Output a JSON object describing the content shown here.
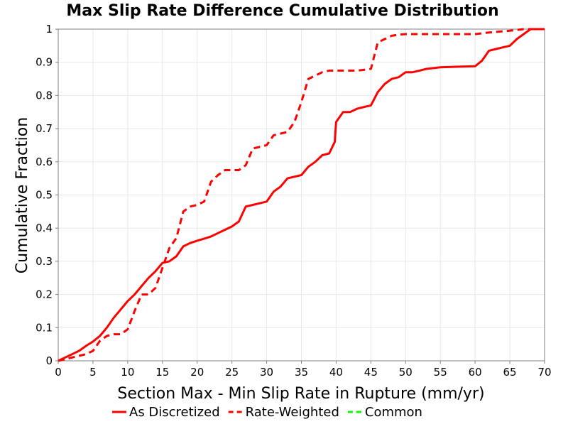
{
  "chart_data": {
    "type": "line",
    "title": "Max Slip Rate Difference Cumulative Distribution",
    "xlabel": "Section Max - Min Slip Rate in Rupture (mm/yr)",
    "ylabel": "Cumulative Fraction",
    "xlim": [
      0,
      70
    ],
    "ylim": [
      0,
      1
    ],
    "x_ticks": [
      0,
      5,
      10,
      15,
      20,
      25,
      30,
      35,
      40,
      45,
      50,
      55,
      60,
      65,
      70
    ],
    "y_ticks": [
      0,
      0.1,
      0.2,
      0.3,
      0.4,
      0.5,
      0.6,
      0.7,
      0.8,
      0.9,
      1
    ],
    "grid": true,
    "legend_position": "bottom",
    "legend": [
      {
        "name": "As Discretized",
        "color": "#ff0000",
        "style": "solid"
      },
      {
        "name": "Rate-Weighted",
        "color": "#ff0000",
        "style": "dashed"
      },
      {
        "name": "Common",
        "color": "#00ff00",
        "style": "dashed"
      }
    ],
    "series": [
      {
        "name": "As Discretized",
        "color": "#ff0000",
        "style": "solid",
        "x": [
          0,
          1,
          2,
          3,
          4,
          5,
          6,
          7,
          8,
          9,
          10,
          11,
          12,
          13,
          14,
          15,
          16,
          17,
          18,
          19,
          20,
          21,
          22,
          23,
          24,
          25,
          26,
          27,
          28,
          29,
          30,
          31,
          32,
          33,
          34,
          35,
          36,
          37,
          38,
          39,
          39.8,
          40,
          41,
          42,
          43,
          44,
          45,
          46,
          47,
          48,
          49,
          50,
          51,
          52,
          53,
          55,
          58,
          60,
          61,
          62,
          63,
          64,
          65,
          66,
          67,
          68,
          70
        ],
        "y": [
          0,
          0.01,
          0.02,
          0.03,
          0.045,
          0.058,
          0.075,
          0.1,
          0.13,
          0.155,
          0.18,
          0.2,
          0.225,
          0.25,
          0.27,
          0.295,
          0.3,
          0.315,
          0.345,
          0.355,
          0.362,
          0.368,
          0.375,
          0.385,
          0.395,
          0.405,
          0.42,
          0.465,
          0.47,
          0.475,
          0.48,
          0.51,
          0.525,
          0.55,
          0.555,
          0.56,
          0.585,
          0.6,
          0.62,
          0.625,
          0.66,
          0.72,
          0.75,
          0.75,
          0.76,
          0.765,
          0.77,
          0.81,
          0.835,
          0.85,
          0.855,
          0.87,
          0.87,
          0.875,
          0.88,
          0.885,
          0.887,
          0.888,
          0.905,
          0.935,
          0.94,
          0.945,
          0.95,
          0.97,
          0.985,
          1,
          1
        ]
      },
      {
        "name": "Rate-Weighted",
        "color": "#ff0000",
        "style": "dashed",
        "x": [
          0,
          1,
          2,
          3,
          4,
          5,
          6,
          7,
          8,
          9,
          10,
          11,
          12,
          13,
          14,
          15,
          16,
          17,
          18,
          19,
          20,
          21,
          22,
          23,
          24,
          25,
          26,
          27,
          28,
          29,
          30,
          31,
          32,
          33,
          34,
          35,
          36,
          37,
          38,
          39,
          40,
          41,
          42,
          43,
          44,
          45,
          46,
          47,
          48,
          49,
          50,
          55,
          60,
          62,
          65,
          67,
          68,
          70
        ],
        "y": [
          0,
          0.005,
          0.01,
          0.015,
          0.02,
          0.03,
          0.06,
          0.075,
          0.08,
          0.08,
          0.095,
          0.15,
          0.2,
          0.2,
          0.22,
          0.28,
          0.34,
          0.37,
          0.45,
          0.465,
          0.47,
          0.48,
          0.54,
          0.56,
          0.575,
          0.575,
          0.575,
          0.59,
          0.64,
          0.645,
          0.65,
          0.68,
          0.685,
          0.69,
          0.72,
          0.78,
          0.85,
          0.86,
          0.87,
          0.875,
          0.875,
          0.875,
          0.875,
          0.875,
          0.877,
          0.88,
          0.96,
          0.97,
          0.98,
          0.983,
          0.985,
          0.985,
          0.985,
          0.99,
          0.995,
          1,
          1,
          1
        ]
      },
      {
        "name": "Common",
        "color": "#00ff00",
        "style": "dashed",
        "x": [],
        "y": []
      }
    ]
  }
}
